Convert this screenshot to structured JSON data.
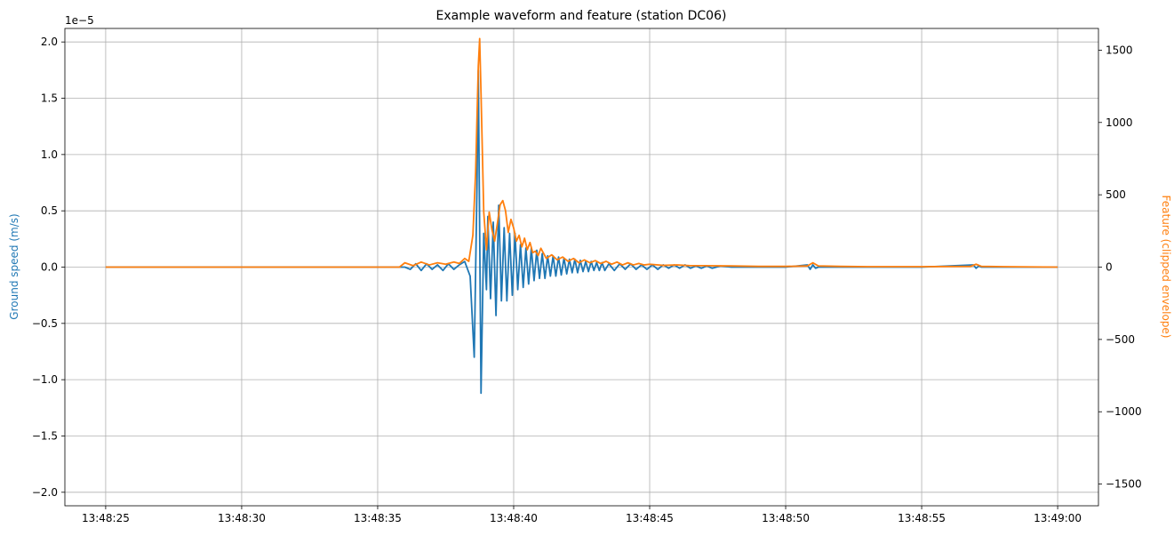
{
  "chart_data": {
    "type": "line",
    "title": "Example waveform and feature (station DC06)",
    "xlabel": "",
    "x_ticks": [
      "13:48:25",
      "13:48:30",
      "13:48:35",
      "13:48:40",
      "13:48:45",
      "13:48:50",
      "13:48:55",
      "13:49:00"
    ],
    "xlim_seconds": [
      -1.5,
      36.5
    ],
    "y_left": {
      "label": "Ground speed (m/s)",
      "multiplier_label": "1e−5",
      "lim": [
        -2.12,
        2.12
      ],
      "ticks": [
        -2.0,
        -1.5,
        -1.0,
        -0.5,
        0.0,
        0.5,
        1.0,
        1.5,
        2.0
      ],
      "tick_labels": [
        "−2.0",
        "−1.5",
        "−1.0",
        "−0.5",
        "0.0",
        "0.5",
        "1.0",
        "1.5",
        "2.0"
      ],
      "color": "#1f77b4"
    },
    "y_right": {
      "label": "Feature (clipped envelope)",
      "lim": [
        -1650,
        1650
      ],
      "ticks": [
        -1500,
        -1000,
        -500,
        0,
        500,
        1000,
        1500
      ],
      "tick_labels": [
        "−1500",
        "−1000",
        "−500",
        "0",
        "500",
        "1000",
        "1500"
      ],
      "color": "#ff7f0e"
    },
    "grid": true,
    "series": [
      {
        "axis": "left",
        "color": "#1f77b4",
        "x_seconds": [
          0,
          5,
          10,
          11.0,
          11.2,
          11.4,
          11.6,
          11.8,
          12.0,
          12.2,
          12.4,
          12.6,
          12.8,
          13.0,
          13.2,
          13.4,
          13.55,
          13.65,
          13.7,
          13.8,
          13.9,
          14.0,
          14.05,
          14.15,
          14.25,
          14.35,
          14.45,
          14.55,
          14.65,
          14.75,
          14.85,
          14.95,
          15.05,
          15.15,
          15.25,
          15.35,
          15.45,
          15.55,
          15.65,
          15.75,
          15.85,
          15.95,
          16.05,
          16.15,
          16.25,
          16.35,
          16.45,
          16.55,
          16.65,
          16.75,
          16.85,
          16.95,
          17.05,
          17.15,
          17.25,
          17.35,
          17.45,
          17.55,
          17.65,
          17.75,
          17.85,
          17.95,
          18.05,
          18.15,
          18.25,
          18.35,
          18.5,
          18.7,
          18.9,
          19.1,
          19.3,
          19.5,
          19.7,
          19.9,
          20.1,
          20.3,
          20.5,
          20.7,
          20.9,
          21.1,
          21.3,
          21.5,
          21.7,
          21.9,
          22.1,
          22.3,
          22.6,
          23,
          24,
          25,
          25.8,
          25.9,
          26.0,
          26.1,
          26.2,
          27,
          28,
          30,
          31.9,
          32.0,
          32.1,
          32.2,
          33,
          35
        ],
        "values": [
          0,
          0,
          0,
          0,
          -0.02,
          0.03,
          -0.03,
          0.03,
          -0.02,
          0.02,
          -0.03,
          0.03,
          -0.02,
          0.02,
          0.05,
          -0.08,
          -0.8,
          0.7,
          1.75,
          -1.12,
          0.3,
          -0.2,
          0.45,
          -0.28,
          0.4,
          -0.43,
          0.55,
          -0.3,
          0.35,
          -0.3,
          0.3,
          -0.25,
          0.3,
          -0.2,
          0.2,
          -0.18,
          0.17,
          -0.15,
          0.17,
          -0.12,
          0.15,
          -0.1,
          0.12,
          -0.1,
          0.1,
          -0.08,
          0.1,
          -0.08,
          0.09,
          -0.07,
          0.08,
          -0.06,
          0.07,
          -0.05,
          0.07,
          -0.05,
          0.06,
          -0.04,
          0.05,
          -0.04,
          0.05,
          -0.03,
          0.04,
          -0.03,
          0.04,
          -0.03,
          0.03,
          -0.03,
          0.03,
          -0.02,
          0.03,
          -0.02,
          0.02,
          -0.02,
          0.02,
          -0.02,
          0.02,
          -0.01,
          0.02,
          -0.01,
          0.02,
          -0.01,
          0.01,
          -0.01,
          0.01,
          -0.01,
          0.01,
          0,
          0,
          0,
          0.02,
          -0.02,
          0.02,
          -0.01,
          0,
          0,
          0,
          0,
          0.02,
          -0.01,
          0.01,
          0,
          0,
          0
        ]
      },
      {
        "axis": "right",
        "color": "#ff7f0e",
        "x_seconds": [
          0,
          5,
          10,
          10.8,
          11.0,
          11.3,
          11.6,
          11.9,
          12.2,
          12.5,
          12.8,
          13.0,
          13.2,
          13.35,
          13.5,
          13.6,
          13.7,
          13.75,
          13.8,
          13.9,
          14.0,
          14.1,
          14.2,
          14.3,
          14.4,
          14.5,
          14.6,
          14.7,
          14.8,
          14.9,
          15.0,
          15.1,
          15.2,
          15.3,
          15.4,
          15.5,
          15.6,
          15.7,
          15.8,
          15.9,
          16.0,
          16.2,
          16.4,
          16.6,
          16.8,
          17.0,
          17.2,
          17.4,
          17.6,
          17.8,
          18.0,
          18.2,
          18.4,
          18.6,
          18.8,
          19.0,
          19.2,
          19.4,
          19.6,
          19.8,
          20.0,
          20.5,
          21,
          21.5,
          22,
          23,
          24,
          25,
          25.8,
          26.0,
          26.2,
          27,
          28,
          30,
          31.8,
          32.0,
          32.2,
          33,
          35
        ],
        "values": [
          0,
          0,
          0,
          0,
          30,
          10,
          35,
          15,
          30,
          20,
          35,
          25,
          60,
          40,
          220,
          650,
          1390,
          1580,
          1200,
          380,
          120,
          380,
          260,
          180,
          300,
          430,
          460,
          390,
          240,
          330,
          270,
          180,
          220,
          140,
          200,
          120,
          170,
          100,
          110,
          80,
          130,
          60,
          85,
          50,
          70,
          40,
          60,
          30,
          50,
          30,
          45,
          25,
          40,
          20,
          35,
          15,
          30,
          15,
          25,
          15,
          20,
          12,
          15,
          10,
          10,
          8,
          5,
          5,
          8,
          30,
          8,
          5,
          3,
          3,
          5,
          20,
          5,
          3,
          0
        ]
      }
    ]
  }
}
